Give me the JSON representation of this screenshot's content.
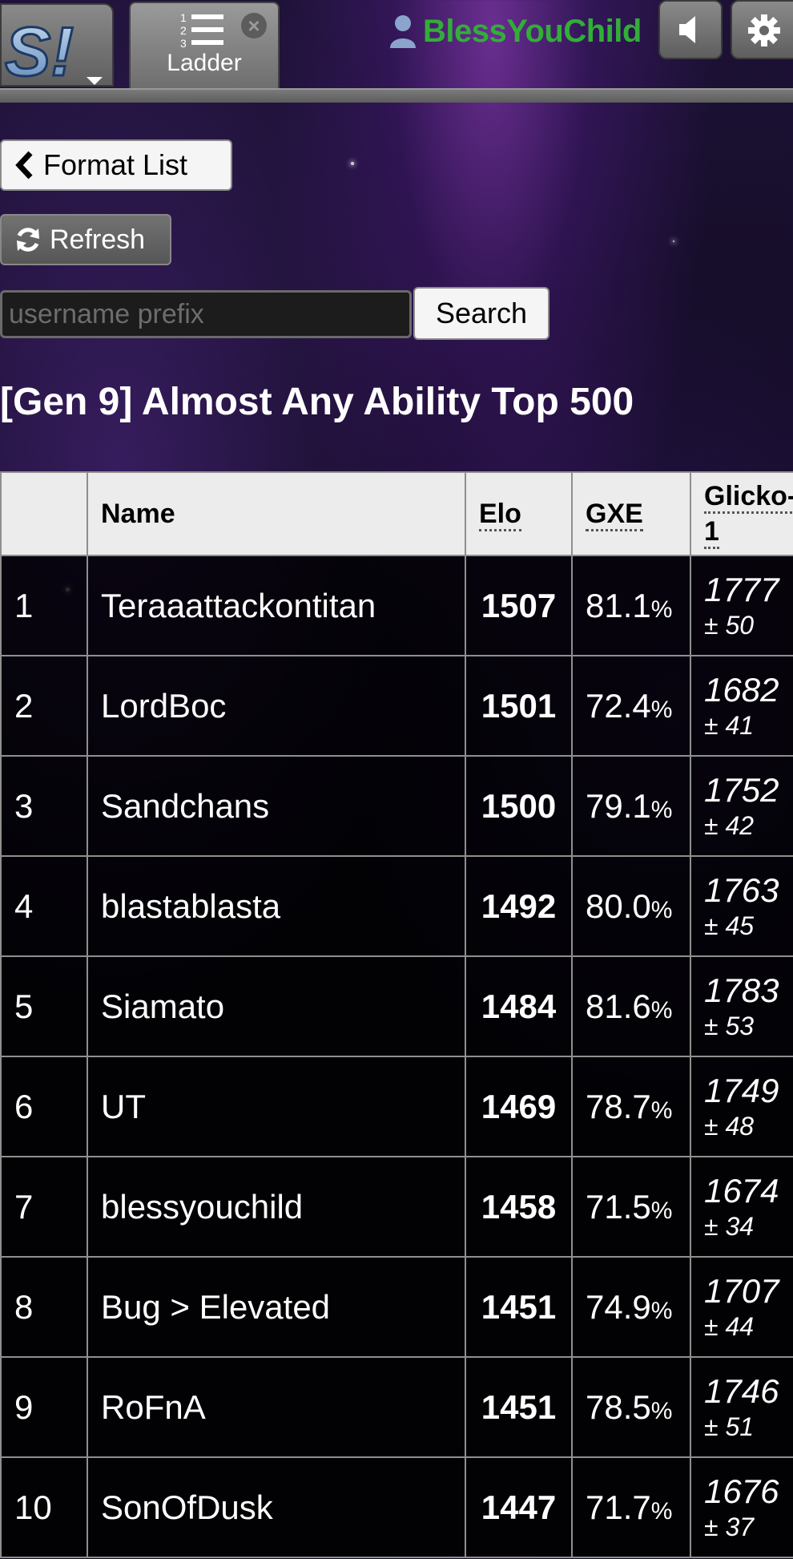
{
  "header": {
    "logo_text": "S!",
    "tab": {
      "label": "Ladder"
    },
    "username": "BlessYouChild"
  },
  "controls": {
    "format_list_label": "Format List",
    "refresh_label": "Refresh",
    "search_placeholder": "username prefix",
    "search_label": "Search"
  },
  "ladder": {
    "title": "[Gen 9] Almost Any Ability Top 500",
    "columns": {
      "rank": "",
      "name": "Name",
      "elo": "Elo",
      "gxe": "GXE",
      "glicko": "Glicko-1"
    },
    "rows": [
      {
        "rank": "1",
        "name": "Teraaattackontitan",
        "elo": "1507",
        "gxe": "81.1",
        "glicko": "1777",
        "dev": "± 50"
      },
      {
        "rank": "2",
        "name": "LordBoc",
        "elo": "1501",
        "gxe": "72.4",
        "glicko": "1682",
        "dev": "± 41"
      },
      {
        "rank": "3",
        "name": "Sandchans",
        "elo": "1500",
        "gxe": "79.1",
        "glicko": "1752",
        "dev": "± 42"
      },
      {
        "rank": "4",
        "name": "blastablasta",
        "elo": "1492",
        "gxe": "80.0",
        "glicko": "1763",
        "dev": "± 45"
      },
      {
        "rank": "5",
        "name": "Siamato",
        "elo": "1484",
        "gxe": "81.6",
        "glicko": "1783",
        "dev": "± 53"
      },
      {
        "rank": "6",
        "name": "UT",
        "elo": "1469",
        "gxe": "78.7",
        "glicko": "1749",
        "dev": "± 48"
      },
      {
        "rank": "7",
        "name": "blessyouchild",
        "elo": "1458",
        "gxe": "71.5",
        "glicko": "1674",
        "dev": "± 34"
      },
      {
        "rank": "8",
        "name": "Bug > Elevated",
        "elo": "1451",
        "gxe": "74.9",
        "glicko": "1707",
        "dev": "± 44"
      },
      {
        "rank": "9",
        "name": "RoFnA",
        "elo": "1451",
        "gxe": "78.5",
        "glicko": "1746",
        "dev": "± 51"
      },
      {
        "rank": "10",
        "name": "SonOfDusk",
        "elo": "1447",
        "gxe": "71.7",
        "glicko": "1676",
        "dev": "± 37"
      }
    ]
  },
  "colors": {
    "username": "#33ad3a",
    "table_header_bg": "#ececec",
    "row_bg": "#000000"
  },
  "icons": [
    "showdown-logo-icon",
    "ladder-list-icon",
    "close-tab-icon",
    "user-icon",
    "sound-icon",
    "gear-icon",
    "chevron-left-icon",
    "refresh-icon"
  ]
}
